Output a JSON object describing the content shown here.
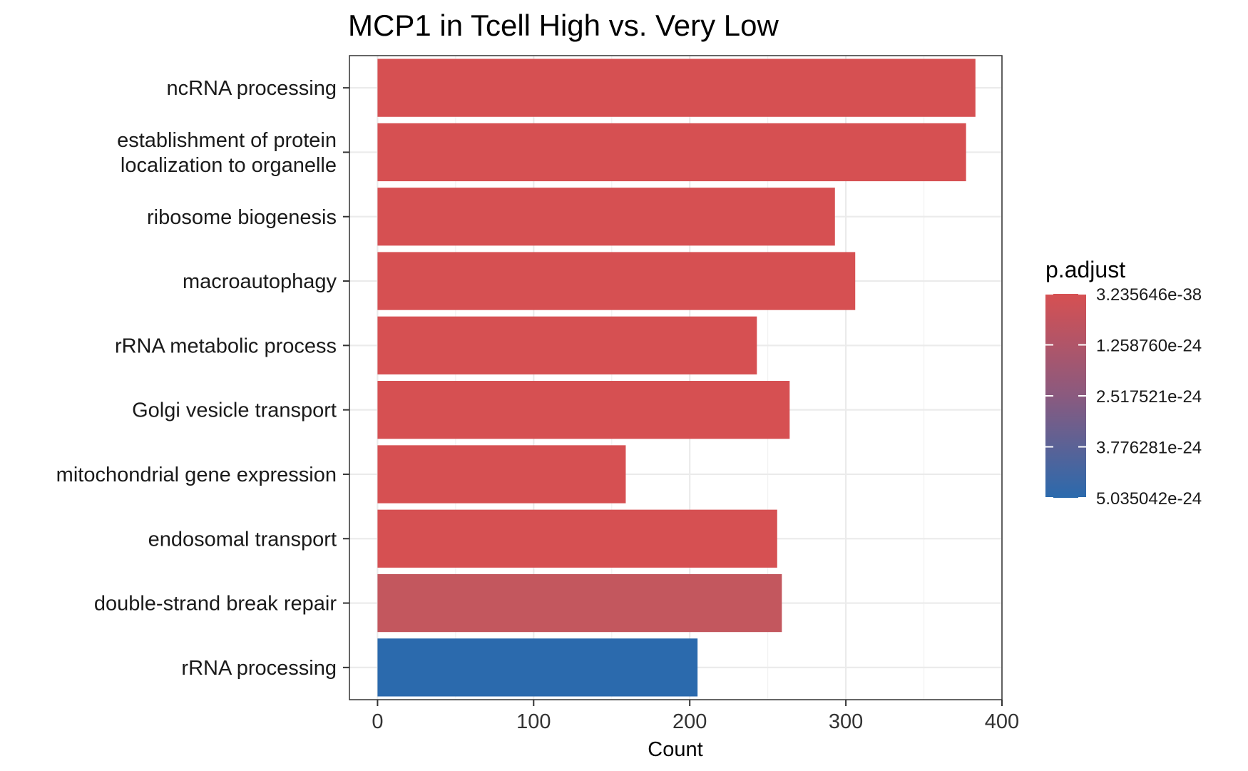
{
  "chart_data": {
    "type": "bar",
    "orientation": "horizontal",
    "title": "MCP1 in Tcell High vs. Very Low",
    "xlabel": "Count",
    "ylabel": "",
    "xlim": [
      -18,
      400
    ],
    "xticks": [
      0,
      100,
      200,
      300,
      400
    ],
    "grid": true,
    "categories": [
      "ncRNA processing",
      "establishment of protein localization to organelle",
      "ribosome biogenesis",
      "macroautophagy",
      "rRNA metabolic process",
      "Golgi vesicle transport",
      "mitochondrial gene expression",
      "endosomal transport",
      "double-strand break repair",
      "rRNA processing"
    ],
    "category_lines": [
      [
        "ncRNA processing"
      ],
      [
        "establishment of protein",
        "localization to organelle"
      ],
      [
        "ribosome biogenesis"
      ],
      [
        "macroautophagy"
      ],
      [
        "rRNA metabolic process"
      ],
      [
        "Golgi vesicle transport"
      ],
      [
        "mitochondrial gene expression"
      ],
      [
        "endosomal transport"
      ],
      [
        "double-strand break repair"
      ],
      [
        "rRNA processing"
      ]
    ],
    "values": [
      383,
      377,
      293,
      306,
      243,
      264,
      159,
      256,
      259,
      205
    ],
    "colors": [
      "#d65052",
      "#d65052",
      "#d65052",
      "#d65052",
      "#d65052",
      "#d65052",
      "#d65052",
      "#d65052",
      "#c3575e",
      "#2b6aad"
    ],
    "legend": {
      "title": "p.adjust",
      "position": "right",
      "color_low": "#d65052",
      "color_high": "#2b6aad",
      "ticks": [
        "3.235646e-38",
        "1.258760e-24",
        "2.517521e-24",
        "3.776281e-24",
        "5.035042e-24"
      ]
    }
  }
}
